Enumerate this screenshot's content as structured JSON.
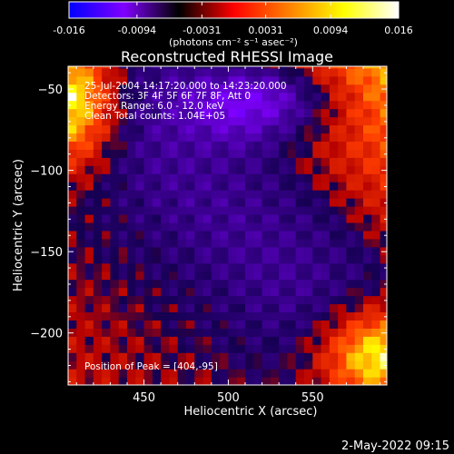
{
  "chart_data": {
    "type": "heatmap",
    "title": "Reconstructed RHESSI Image",
    "xlabel": "Heliocentric X (arcsec)",
    "ylabel": "Heliocentric Y (arcsec)",
    "xlim": [
      405,
      594
    ],
    "ylim": [
      -232,
      -36
    ],
    "x_ticks": [
      450,
      500,
      550
    ],
    "y_ticks": [
      -50,
      -100,
      -150,
      -200
    ],
    "colorbar": {
      "range": [
        -0.016,
        0.016
      ],
      "tick_labels": [
        "-0.016",
        "-0.0094",
        "-0.0031",
        "0.0031",
        "0.0094",
        "0.016"
      ],
      "tick_values": [
        -0.016,
        -0.0094,
        -0.0031,
        0.0031,
        0.0094,
        0.016
      ],
      "unit_label": "(photons cm⁻² s⁻¹ asec⁻²)",
      "colormap": [
        "#0000ff",
        "#8000ff",
        "#000000",
        "#ff0000",
        "#ff8000",
        "#ffff00",
        "#ffffff"
      ]
    },
    "annotations": [
      "25-Jul-2004 14:17:20.000 to 14:23:20.000",
      "Detectors: 3F 4F 5F 6F 7F 8F, Att 0",
      "Energy Range: 6.0 - 12.0 keV",
      "Clean   Total counts: 1.04E+05"
    ],
    "peak_label": "Position of Peak = [404,-95]",
    "peak": [
      404,
      -95
    ],
    "grid": false
  },
  "footer": {
    "timestamp": "2-May-2022 09:15"
  }
}
